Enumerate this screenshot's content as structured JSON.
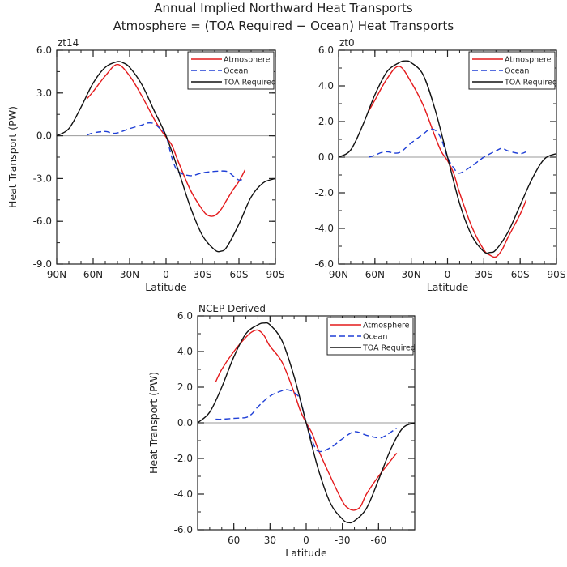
{
  "figure": {
    "title_line1": "Annual Implied Northward Heat Transports",
    "title_line2": "Atmosphere = (TOA Required − Ocean) Heat Transports"
  },
  "colors": {
    "atmosphere": "#e41a1c",
    "ocean": "#1f3fd6",
    "toa": "#111111",
    "zero_line": "#999999"
  },
  "chart_data": [
    {
      "type": "line",
      "panel_label": "zt14",
      "ylabel": "Heat Transport (PW)",
      "xlabel": "Latitude",
      "xlim": [
        90,
        -90
      ],
      "ylim": [
        -9,
        6
      ],
      "xticks": [
        {
          "v": 90,
          "label": "90N"
        },
        {
          "v": 60,
          "label": "60N"
        },
        {
          "v": 30,
          "label": "30N"
        },
        {
          "v": 0,
          "label": "0"
        },
        {
          "v": -30,
          "label": "30S"
        },
        {
          "v": -60,
          "label": "60S"
        },
        {
          "v": -90,
          "label": "90S"
        }
      ],
      "yticks": [
        {
          "v": 6,
          "label": "6.0"
        },
        {
          "v": 3,
          "label": "3.0"
        },
        {
          "v": 0,
          "label": "0.0"
        },
        {
          "v": -3,
          "label": "-3.0"
        },
        {
          "v": -6,
          "label": "-6.0"
        },
        {
          "v": -9,
          "label": "-9.0"
        }
      ],
      "legend_position": "top-right",
      "series": [
        {
          "name": "Atmosphere",
          "style": "atmosphere",
          "x": [
            65,
            60,
            50,
            40,
            30,
            20,
            10,
            5,
            0,
            -5,
            -10,
            -20,
            -30,
            -35,
            -40,
            -45,
            -50,
            -55,
            -60,
            -65
          ],
          "y": [
            2.6,
            3.1,
            4.2,
            5.0,
            4.2,
            2.8,
            1.2,
            0.5,
            -0.1,
            -0.7,
            -1.8,
            -3.8,
            -5.2,
            -5.6,
            -5.6,
            -5.2,
            -4.5,
            -3.8,
            -3.2,
            -2.4
          ]
        },
        {
          "name": "Ocean",
          "style": "ocean",
          "x": [
            65,
            60,
            50,
            45,
            40,
            30,
            20,
            15,
            10,
            5,
            0,
            -5,
            -10,
            -20,
            -30,
            -40,
            -50,
            -55,
            -60,
            -65
          ],
          "y": [
            0.05,
            0.2,
            0.3,
            0.2,
            0.2,
            0.5,
            0.75,
            0.9,
            0.85,
            0.5,
            0.0,
            -1.6,
            -2.5,
            -2.8,
            -2.6,
            -2.5,
            -2.5,
            -2.8,
            -3.1,
            -3.0
          ]
        },
        {
          "name": "TOA Required",
          "style": "toa",
          "x": [
            90,
            80,
            70,
            60,
            50,
            40,
            35,
            30,
            20,
            10,
            0,
            -10,
            -20,
            -30,
            -40,
            -45,
            -50,
            -60,
            -70,
            -80,
            -90
          ],
          "y": [
            0.0,
            0.5,
            2.0,
            3.7,
            4.8,
            5.2,
            5.1,
            4.8,
            3.6,
            1.8,
            0.0,
            -2.4,
            -5.0,
            -7.0,
            -8.0,
            -8.1,
            -7.8,
            -6.2,
            -4.3,
            -3.3,
            -3.0
          ]
        }
      ]
    },
    {
      "type": "line",
      "panel_label": "zt0",
      "ylabel": "",
      "xlabel": "Latitude",
      "xlim": [
        90,
        -90
      ],
      "ylim": [
        -6,
        6
      ],
      "xticks": [
        {
          "v": 90,
          "label": "90N"
        },
        {
          "v": 60,
          "label": "60N"
        },
        {
          "v": 30,
          "label": "30N"
        },
        {
          "v": 0,
          "label": "0"
        },
        {
          "v": -30,
          "label": "30S"
        },
        {
          "v": -60,
          "label": "60S"
        },
        {
          "v": -90,
          "label": "90S"
        }
      ],
      "yticks": [
        {
          "v": 6,
          "label": "6.0"
        },
        {
          "v": 4,
          "label": "4.0"
        },
        {
          "v": 2,
          "label": "2.0"
        },
        {
          "v": 0,
          "label": "0.0"
        },
        {
          "v": -2,
          "label": "-2.0"
        },
        {
          "v": -4,
          "label": "-4.0"
        },
        {
          "v": -6,
          "label": "-6.0"
        }
      ],
      "legend_position": "top-right",
      "series": [
        {
          "name": "Atmosphere",
          "style": "atmosphere",
          "x": [
            65,
            60,
            50,
            40,
            30,
            20,
            10,
            5,
            0,
            -5,
            -10,
            -20,
            -30,
            -35,
            -40,
            -45,
            -50,
            -60,
            -65
          ],
          "y": [
            2.6,
            3.2,
            4.4,
            5.1,
            4.2,
            2.9,
            1.1,
            0.3,
            -0.2,
            -0.9,
            -2.0,
            -3.9,
            -5.2,
            -5.5,
            -5.6,
            -5.2,
            -4.5,
            -3.2,
            -2.4
          ]
        },
        {
          "name": "Ocean",
          "style": "ocean",
          "x": [
            65,
            60,
            55,
            50,
            40,
            30,
            20,
            15,
            10,
            5,
            0,
            -5,
            -10,
            -20,
            -30,
            -40,
            -45,
            -50,
            -60,
            -65
          ],
          "y": [
            0.0,
            0.1,
            0.25,
            0.3,
            0.25,
            0.8,
            1.3,
            1.55,
            1.5,
            1.0,
            0.0,
            -0.6,
            -0.9,
            -0.5,
            0.0,
            0.35,
            0.5,
            0.35,
            0.2,
            0.3
          ]
        },
        {
          "name": "TOA Required",
          "style": "toa",
          "x": [
            90,
            80,
            70,
            60,
            50,
            40,
            35,
            30,
            20,
            10,
            0,
            -10,
            -20,
            -30,
            -35,
            -40,
            -50,
            -60,
            -70,
            -80,
            -90
          ],
          "y": [
            0.0,
            0.4,
            1.8,
            3.5,
            4.8,
            5.3,
            5.4,
            5.3,
            4.6,
            2.6,
            0.0,
            -2.6,
            -4.4,
            -5.3,
            -5.35,
            -5.2,
            -4.2,
            -2.7,
            -1.2,
            -0.1,
            0.2
          ]
        }
      ]
    },
    {
      "type": "line",
      "panel_label": "NCEP Derived",
      "ylabel": "Heat Transport (PW)",
      "xlabel": "Latitude",
      "xlim": [
        90,
        -90
      ],
      "ylim": [
        -6,
        6
      ],
      "xticks": [
        {
          "v": 60,
          "label": "60"
        },
        {
          "v": 30,
          "label": "30"
        },
        {
          "v": 0,
          "label": "0"
        },
        {
          "v": -30,
          "label": "-30"
        },
        {
          "v": -60,
          "label": "-60"
        }
      ],
      "yticks": [
        {
          "v": 6,
          "label": "6.0"
        },
        {
          "v": 4,
          "label": "4.0"
        },
        {
          "v": 2,
          "label": "2.0"
        },
        {
          "v": 0,
          "label": "0.0"
        },
        {
          "v": -2,
          "label": "-2.0"
        },
        {
          "v": -4,
          "label": "-4.0"
        },
        {
          "v": -6,
          "label": "-6.0"
        }
      ],
      "legend_position": "top-right",
      "series": [
        {
          "name": "Atmosphere",
          "style": "atmosphere",
          "x": [
            75,
            70,
            60,
            50,
            45,
            40,
            35,
            30,
            20,
            10,
            5,
            0,
            -5,
            -10,
            -20,
            -30,
            -35,
            -40,
            -45,
            -50,
            -60,
            -75
          ],
          "y": [
            2.3,
            3.0,
            4.0,
            4.8,
            5.1,
            5.2,
            4.9,
            4.3,
            3.4,
            1.7,
            0.7,
            0.0,
            -0.6,
            -1.5,
            -3.0,
            -4.4,
            -4.8,
            -4.9,
            -4.7,
            -4.0,
            -3.0,
            -1.7
          ]
        },
        {
          "name": "Ocean",
          "style": "ocean",
          "x": [
            75,
            70,
            60,
            50,
            45,
            40,
            30,
            20,
            15,
            10,
            5,
            0,
            -5,
            -10,
            -20,
            -30,
            -40,
            -50,
            -60,
            -65,
            -75
          ],
          "y": [
            0.2,
            0.2,
            0.25,
            0.3,
            0.5,
            0.9,
            1.5,
            1.8,
            1.85,
            1.7,
            1.3,
            0.0,
            -1.0,
            -1.6,
            -1.4,
            -0.9,
            -0.5,
            -0.7,
            -0.85,
            -0.75,
            -0.3
          ]
        },
        {
          "name": "TOA Required",
          "style": "toa",
          "x": [
            90,
            80,
            70,
            60,
            50,
            40,
            35,
            30,
            20,
            10,
            0,
            -10,
            -20,
            -30,
            -35,
            -40,
            -50,
            -60,
            -70,
            -80,
            -90
          ],
          "y": [
            0.0,
            0.6,
            2.0,
            3.7,
            5.0,
            5.5,
            5.6,
            5.5,
            4.6,
            2.6,
            0.0,
            -2.6,
            -4.5,
            -5.4,
            -5.6,
            -5.5,
            -4.8,
            -3.2,
            -1.5,
            -0.3,
            0.0
          ]
        }
      ]
    }
  ]
}
